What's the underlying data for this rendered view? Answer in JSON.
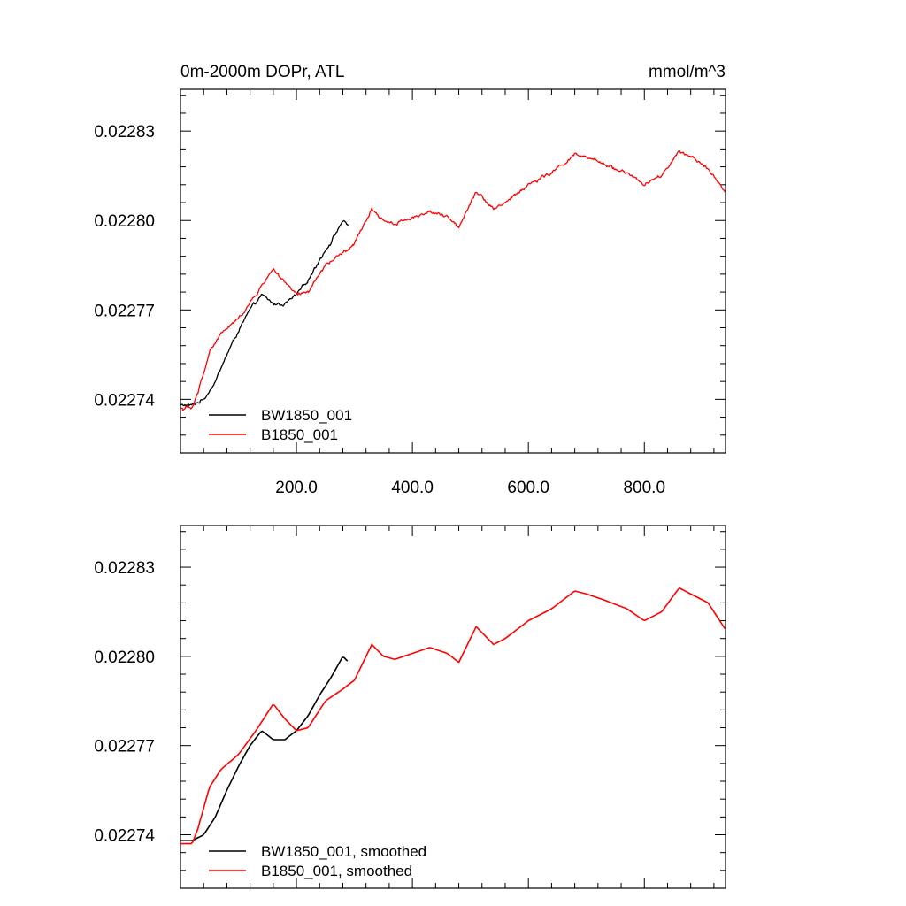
{
  "colors": {
    "black": "#000000",
    "red": "#ff0000"
  },
  "chart_data": [
    {
      "type": "line",
      "title_left": "0m-2000m DOPr, ATL",
      "title_right": "mmol/m^3",
      "xlim": [
        0,
        940
      ],
      "ylim": [
        0.022722,
        0.022844
      ],
      "xticks": [
        200,
        400,
        600,
        800
      ],
      "xticklabels": [
        "200.0",
        "400.0",
        "600.0",
        "800.0"
      ],
      "yticks": [
        0.02274,
        0.02277,
        0.0228,
        0.02283
      ],
      "yticklabels": [
        "0.02274",
        "0.02277",
        "0.02280",
        "0.02283"
      ],
      "legend_position": "bottom-left",
      "noisy": true,
      "series": [
        {
          "name": "BW1850_001",
          "color": "#000000",
          "x": [
            0,
            20,
            40,
            60,
            80,
            100,
            120,
            140,
            160,
            180,
            200,
            220,
            240,
            260,
            280,
            290
          ],
          "y": [
            0.022738,
            0.022738,
            0.02274,
            0.022746,
            0.022755,
            0.022763,
            0.02277,
            0.022775,
            0.022772,
            0.022772,
            0.022775,
            0.02278,
            0.022787,
            0.022793,
            0.0228,
            0.022798
          ]
        },
        {
          "name": "B1850_001",
          "color": "#ff0000",
          "x": [
            0,
            20,
            30,
            50,
            70,
            100,
            130,
            160,
            180,
            200,
            220,
            250,
            280,
            300,
            330,
            350,
            370,
            400,
            430,
            460,
            480,
            510,
            540,
            560,
            600,
            640,
            680,
            700,
            730,
            770,
            800,
            830,
            860,
            880,
            910,
            940
          ],
          "y": [
            0.022737,
            0.022737,
            0.022742,
            0.022756,
            0.022762,
            0.022767,
            0.022775,
            0.022784,
            0.022779,
            0.022775,
            0.022776,
            0.022785,
            0.022789,
            0.022792,
            0.022804,
            0.0228,
            0.022799,
            0.022801,
            0.022803,
            0.022801,
            0.022798,
            0.02281,
            0.022804,
            0.022806,
            0.022812,
            0.022816,
            0.022822,
            0.022821,
            0.022819,
            0.022816,
            0.022812,
            0.022815,
            0.022823,
            0.022821,
            0.022818,
            0.022809
          ]
        }
      ]
    },
    {
      "type": "line",
      "xlim": [
        0,
        940
      ],
      "ylim": [
        0.022722,
        0.022844
      ],
      "xticks": [
        200,
        400,
        600,
        800
      ],
      "yticks": [
        0.02274,
        0.02277,
        0.0228,
        0.02283
      ],
      "yticklabels": [
        "0.02274",
        "0.02277",
        "0.02280",
        "0.02283"
      ],
      "legend_position": "bottom-left",
      "noisy": false,
      "series": [
        {
          "name": "BW1850_001, smoothed",
          "color": "#000000",
          "x": [
            0,
            20,
            40,
            60,
            80,
            100,
            120,
            140,
            160,
            180,
            200,
            220,
            240,
            260,
            280,
            290
          ],
          "y": [
            0.022738,
            0.022738,
            0.02274,
            0.022746,
            0.022755,
            0.022763,
            0.02277,
            0.022775,
            0.022772,
            0.022772,
            0.022775,
            0.02278,
            0.022787,
            0.022793,
            0.0228,
            0.022798
          ]
        },
        {
          "name": "B1850_001, smoothed",
          "color": "#ff0000",
          "x": [
            0,
            20,
            30,
            50,
            70,
            100,
            130,
            160,
            180,
            200,
            220,
            250,
            280,
            300,
            330,
            350,
            370,
            400,
            430,
            460,
            480,
            510,
            540,
            560,
            600,
            640,
            680,
            700,
            730,
            770,
            800,
            830,
            860,
            880,
            910,
            940
          ],
          "y": [
            0.022737,
            0.022737,
            0.022742,
            0.022756,
            0.022762,
            0.022767,
            0.022775,
            0.022784,
            0.022779,
            0.022775,
            0.022776,
            0.022785,
            0.022789,
            0.022792,
            0.022804,
            0.0228,
            0.022799,
            0.022801,
            0.022803,
            0.022801,
            0.022798,
            0.02281,
            0.022804,
            0.022806,
            0.022812,
            0.022816,
            0.022822,
            0.022821,
            0.022819,
            0.022816,
            0.022812,
            0.022815,
            0.022823,
            0.022821,
            0.022818,
            0.022809
          ]
        }
      ]
    }
  ]
}
